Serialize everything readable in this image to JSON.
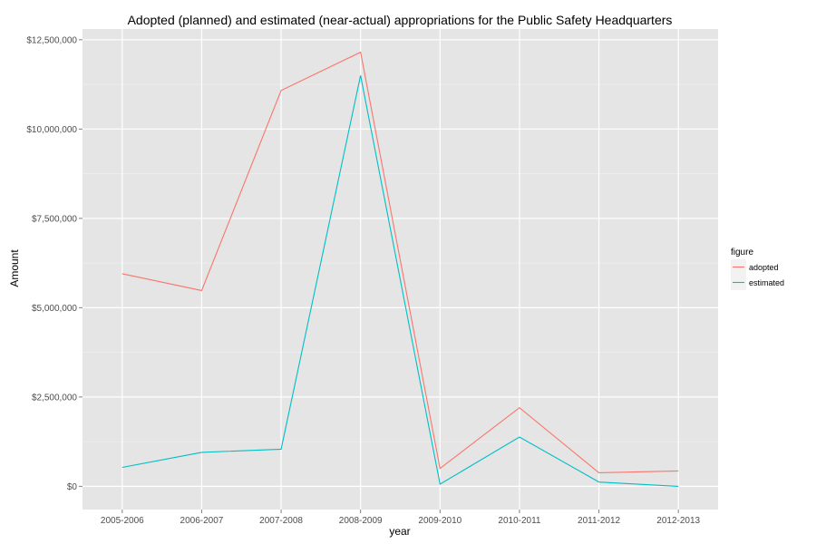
{
  "chart_data": {
    "type": "line",
    "title": "Adopted (planned) and estimated (near-actual) appropriations for the Public Safety Headquarters",
    "xlabel": "year",
    "ylabel": "Amount",
    "categories": [
      "2005-2006",
      "2006-2007",
      "2007-2008",
      "2008-2009",
      "2009-2010",
      "2010-2011",
      "2011-2012",
      "2012-2013"
    ],
    "ylim": [
      -650000,
      12800000
    ],
    "yticks": [
      0,
      2500000,
      5000000,
      7500000,
      10000000,
      12500000
    ],
    "ytick_labels": [
      "$0",
      "$2,500,000",
      "$5,000,000",
      "$7,500,000",
      "$10,000,000",
      "$12,500,000"
    ],
    "grid": true,
    "legend": {
      "title": "figure",
      "position": "right"
    },
    "series": [
      {
        "name": "adopted",
        "color": "#F8766D",
        "values": [
          5950000,
          5480000,
          11080000,
          12150000,
          500000,
          2200000,
          380000,
          430000
        ]
      },
      {
        "name": "estimated",
        "color": "#00BFC4",
        "values": [
          530000,
          950000,
          1040000,
          11500000,
          60000,
          1380000,
          120000,
          0
        ]
      }
    ]
  }
}
